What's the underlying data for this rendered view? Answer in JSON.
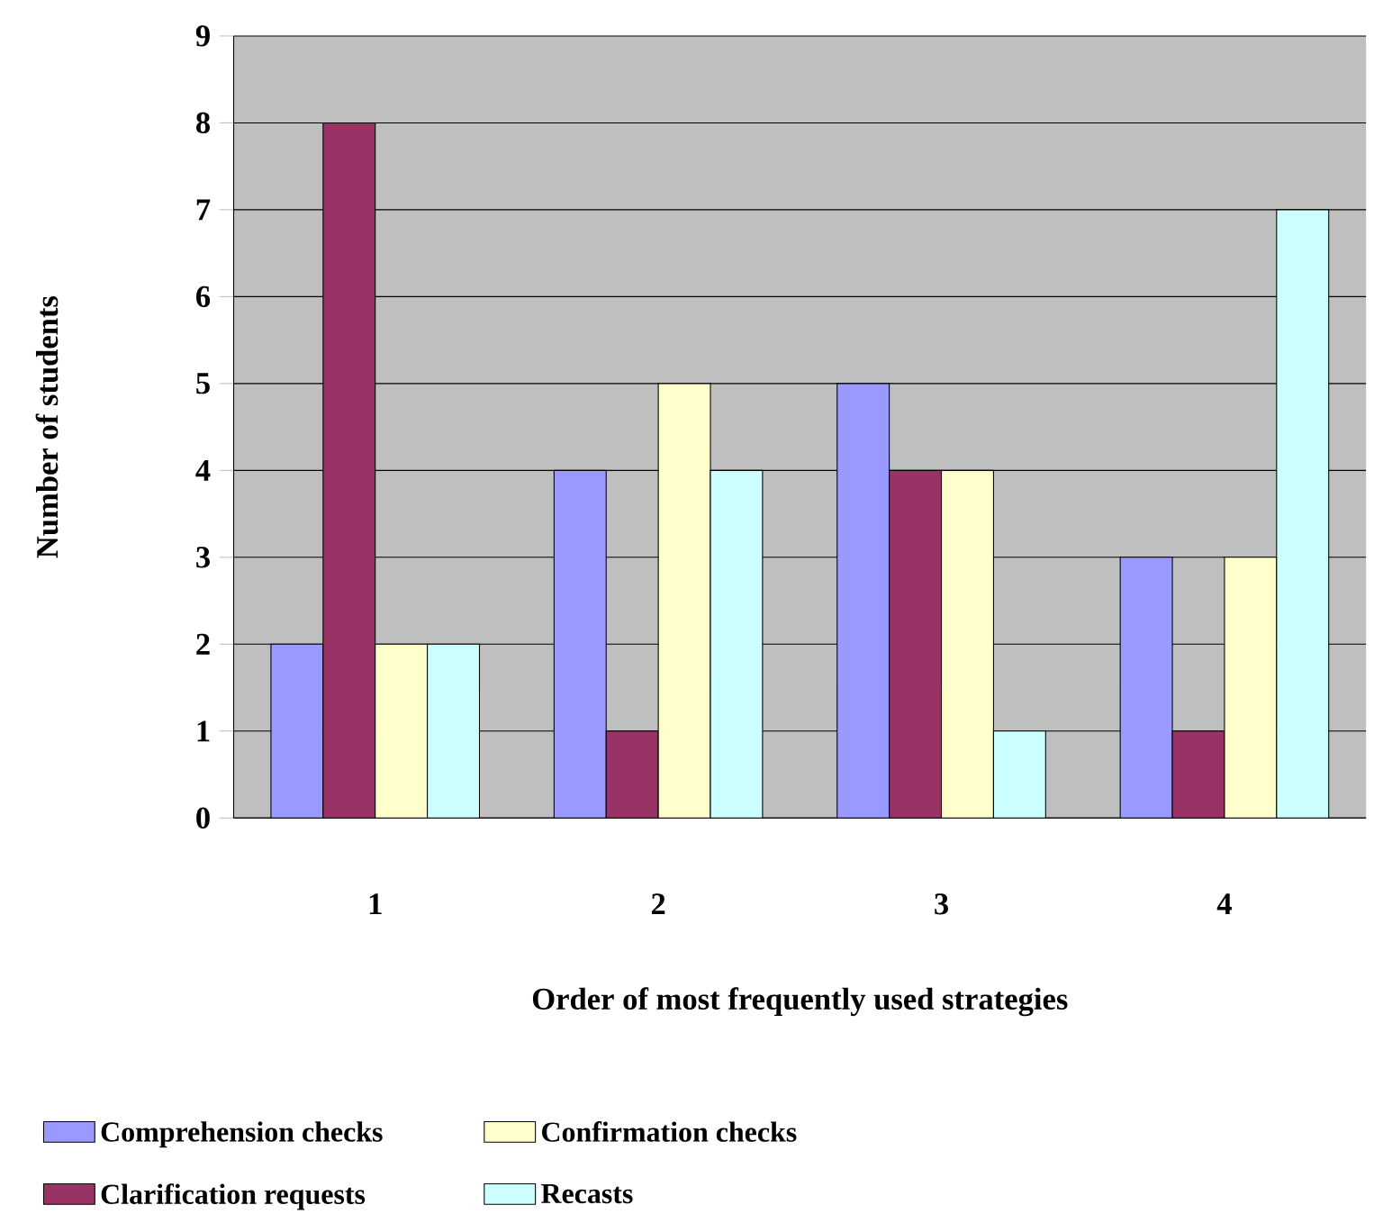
{
  "chart_data": {
    "type": "bar",
    "xlabel": "Order of most frequently used strategies",
    "ylabel": "Number of students",
    "categories": [
      "1",
      "2",
      "3",
      "4"
    ],
    "series": [
      {
        "name": "Comprehension checks",
        "color": "#9999ff",
        "values": [
          2,
          4,
          5,
          3
        ]
      },
      {
        "name": "Clarification requests",
        "color": "#993366",
        "values": [
          8,
          1,
          4,
          1
        ]
      },
      {
        "name": "Confirmation checks",
        "color": "#ffffcc",
        "values": [
          2,
          5,
          4,
          3
        ]
      },
      {
        "name": "Recasts",
        "color": "#ccffff",
        "values": [
          2,
          4,
          1,
          7
        ]
      }
    ],
    "ylim": [
      0,
      9
    ],
    "yticks": [
      0,
      1,
      2,
      3,
      4,
      5,
      6,
      7,
      8,
      9
    ],
    "grid": "y",
    "legend": "bottom"
  }
}
